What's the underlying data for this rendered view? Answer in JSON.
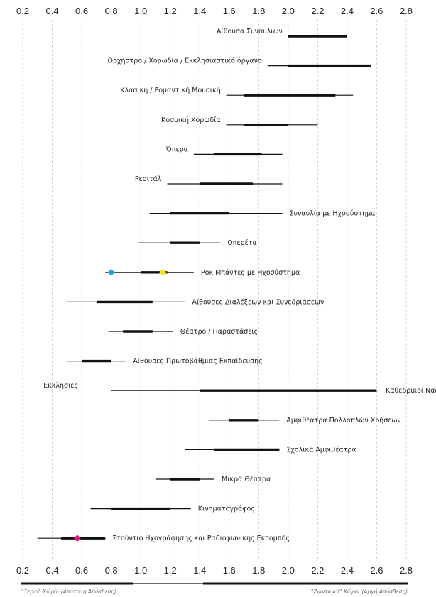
{
  "chart_data": {
    "type": "range",
    "x_ticks": [
      0.2,
      0.4,
      0.6,
      0.8,
      1.0,
      1.2,
      1.4,
      1.6,
      1.8,
      2.0,
      2.2,
      2.4,
      2.6,
      2.8
    ],
    "xlim": [
      0.2,
      2.8
    ],
    "grid": "vertical dashed",
    "rows": [
      {
        "label": "Αίθουσα Συναυλιών",
        "min": 2.0,
        "max": 2.4,
        "q_low": 2.0,
        "q_high": 2.4,
        "label_side": "left"
      },
      {
        "label": "Ορχήστρο / Χορωδία / Εκκλησιαστικό όργανο",
        "min": 1.86,
        "max": 2.56,
        "q_low": 2.0,
        "q_high": 2.56,
        "label_side": "left"
      },
      {
        "label": "Κλασική / Ρομαντική Μουσική",
        "min": 1.58,
        "max": 2.44,
        "q_low": 1.7,
        "q_high": 2.32,
        "label_side": "left"
      },
      {
        "label": "Κοσμική Χορωδία",
        "min": 1.58,
        "max": 2.2,
        "q_low": 1.7,
        "q_high": 2.0,
        "label_side": "left"
      },
      {
        "label": "Όπερα",
        "min": 1.36,
        "max": 1.96,
        "q_low": 1.5,
        "q_high": 1.82,
        "label_side": "left"
      },
      {
        "label": "Ρεσιτάλ",
        "min": 1.18,
        "max": 1.96,
        "q_low": 1.4,
        "q_high": 1.76,
        "label_side": "left"
      },
      {
        "label": "Συναυλία με Ηχοσύστημα",
        "min": 1.06,
        "max": 1.96,
        "q_low": 1.2,
        "q_high": 1.6,
        "label_side": "right"
      },
      {
        "label": "Οπερέτα",
        "min": 0.98,
        "max": 1.54,
        "q_low": 1.2,
        "q_high": 1.4,
        "label_side": "right"
      },
      {
        "label": "Ροκ Μπάντες με Ηχοσύστημα",
        "min": 0.76,
        "max": 1.36,
        "q_low": 1.0,
        "q_high": 1.18,
        "label_side": "right",
        "markers": [
          {
            "value": 0.8,
            "color": "#1aa3d9"
          },
          {
            "value": 1.15,
            "color": "#f5e11c"
          }
        ]
      },
      {
        "label": "Αίθουσες Διαλέξεων και Συνεδριάσεων",
        "min": 0.5,
        "max": 1.3,
        "q_low": 0.7,
        "q_high": 1.08,
        "label_side": "right"
      },
      {
        "label": "Θέατρο / Παραστάσεις",
        "min": 0.78,
        "max": 1.22,
        "q_low": 0.88,
        "q_high": 1.08,
        "label_side": "right"
      },
      {
        "label": "Αίθουσες Πρωτοβάθμιας Εκπαίδευσης",
        "min": 0.5,
        "max": 0.9,
        "q_low": 0.6,
        "q_high": 0.8,
        "label_side": "right"
      },
      {
        "label": "Εκκλησίες",
        "label_right": "Καθεδρικοί Ναοί",
        "min": 0.8,
        "max": 2.6,
        "q_low": 1.4,
        "q_high": 2.6,
        "label_side": "both"
      },
      {
        "label": "Αμφιθέατρα Πολλαπλών Χρήσεων",
        "min": 1.46,
        "max": 1.94,
        "q_low": 1.6,
        "q_high": 1.8,
        "label_side": "right"
      },
      {
        "label": "Σχολικά Αμφιθέατρα",
        "min": 1.3,
        "max": 1.94,
        "q_low": 1.5,
        "q_high": 1.94,
        "label_side": "right"
      },
      {
        "label": "Μικρά Θέατρα",
        "min": 1.1,
        "max": 1.5,
        "q_low": 1.2,
        "q_high": 1.4,
        "label_side": "right"
      },
      {
        "label": "Κινηματογράφος",
        "min": 0.66,
        "max": 1.34,
        "q_low": 0.8,
        "q_high": 1.2,
        "label_side": "right"
      },
      {
        "label": "Στούντιο Ηχογράφησης και Ραδιοφωνικής Εκπομπής",
        "min": 0.3,
        "max": 0.76,
        "q_low": 0.46,
        "q_high": 0.76,
        "label_side": "right",
        "markers": [
          {
            "value": 0.57,
            "color": "#e0157a"
          }
        ]
      }
    ],
    "footer_left": "\"Ξεροί\" Χώροι (Απότομη Απόσβεση)",
    "footer_right": "\"Ζωντανοί\" Χώροι (Αργή Απόσβεση)"
  }
}
